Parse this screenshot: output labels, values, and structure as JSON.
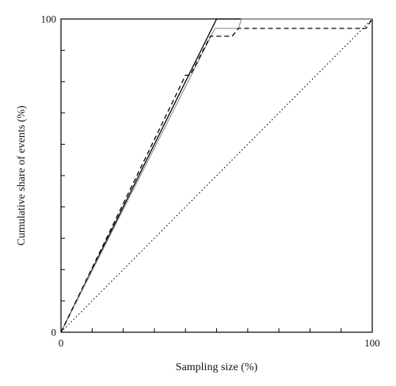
{
  "chart_data": {
    "type": "line",
    "title": "",
    "xlabel": "Sampling size (%)",
    "ylabel": "Cumulative share of events (%)",
    "xlim": [
      0,
      100
    ],
    "ylim": [
      0,
      100
    ],
    "x_tick_labels": [
      {
        "value": 0,
        "label": "0"
      },
      {
        "value": 100,
        "label": "100"
      }
    ],
    "y_tick_labels": [
      {
        "value": 0,
        "label": "0"
      },
      {
        "value": 100,
        "label": "100"
      }
    ],
    "x_minor_ticks": [
      10,
      20,
      30,
      40,
      50,
      60,
      70,
      80,
      90
    ],
    "y_minor_ticks": [
      10,
      20,
      30,
      40,
      50,
      60,
      70,
      80,
      90
    ],
    "grid": false,
    "legend": "none",
    "series": [
      {
        "style": "solid",
        "color": "#000000",
        "points": [
          [
            0,
            0
          ],
          [
            50,
            100
          ],
          [
            100,
            100
          ]
        ]
      },
      {
        "style": "solid",
        "color": "#9a9a9a",
        "points": [
          [
            0,
            0
          ],
          [
            49.5,
            97
          ],
          [
            57,
            97
          ],
          [
            58,
            100
          ],
          [
            100,
            100
          ]
        ]
      },
      {
        "style": "dashed",
        "color": "#000000",
        "points": [
          [
            0,
            0
          ],
          [
            40,
            82
          ],
          [
            41.5,
            82
          ],
          [
            48,
            94.5
          ],
          [
            55,
            94.5
          ],
          [
            57,
            97
          ],
          [
            98,
            97
          ],
          [
            100,
            100
          ]
        ]
      },
      {
        "style": "dotted",
        "color": "#000000",
        "points": [
          [
            0,
            0
          ],
          [
            100,
            100
          ]
        ]
      }
    ]
  }
}
